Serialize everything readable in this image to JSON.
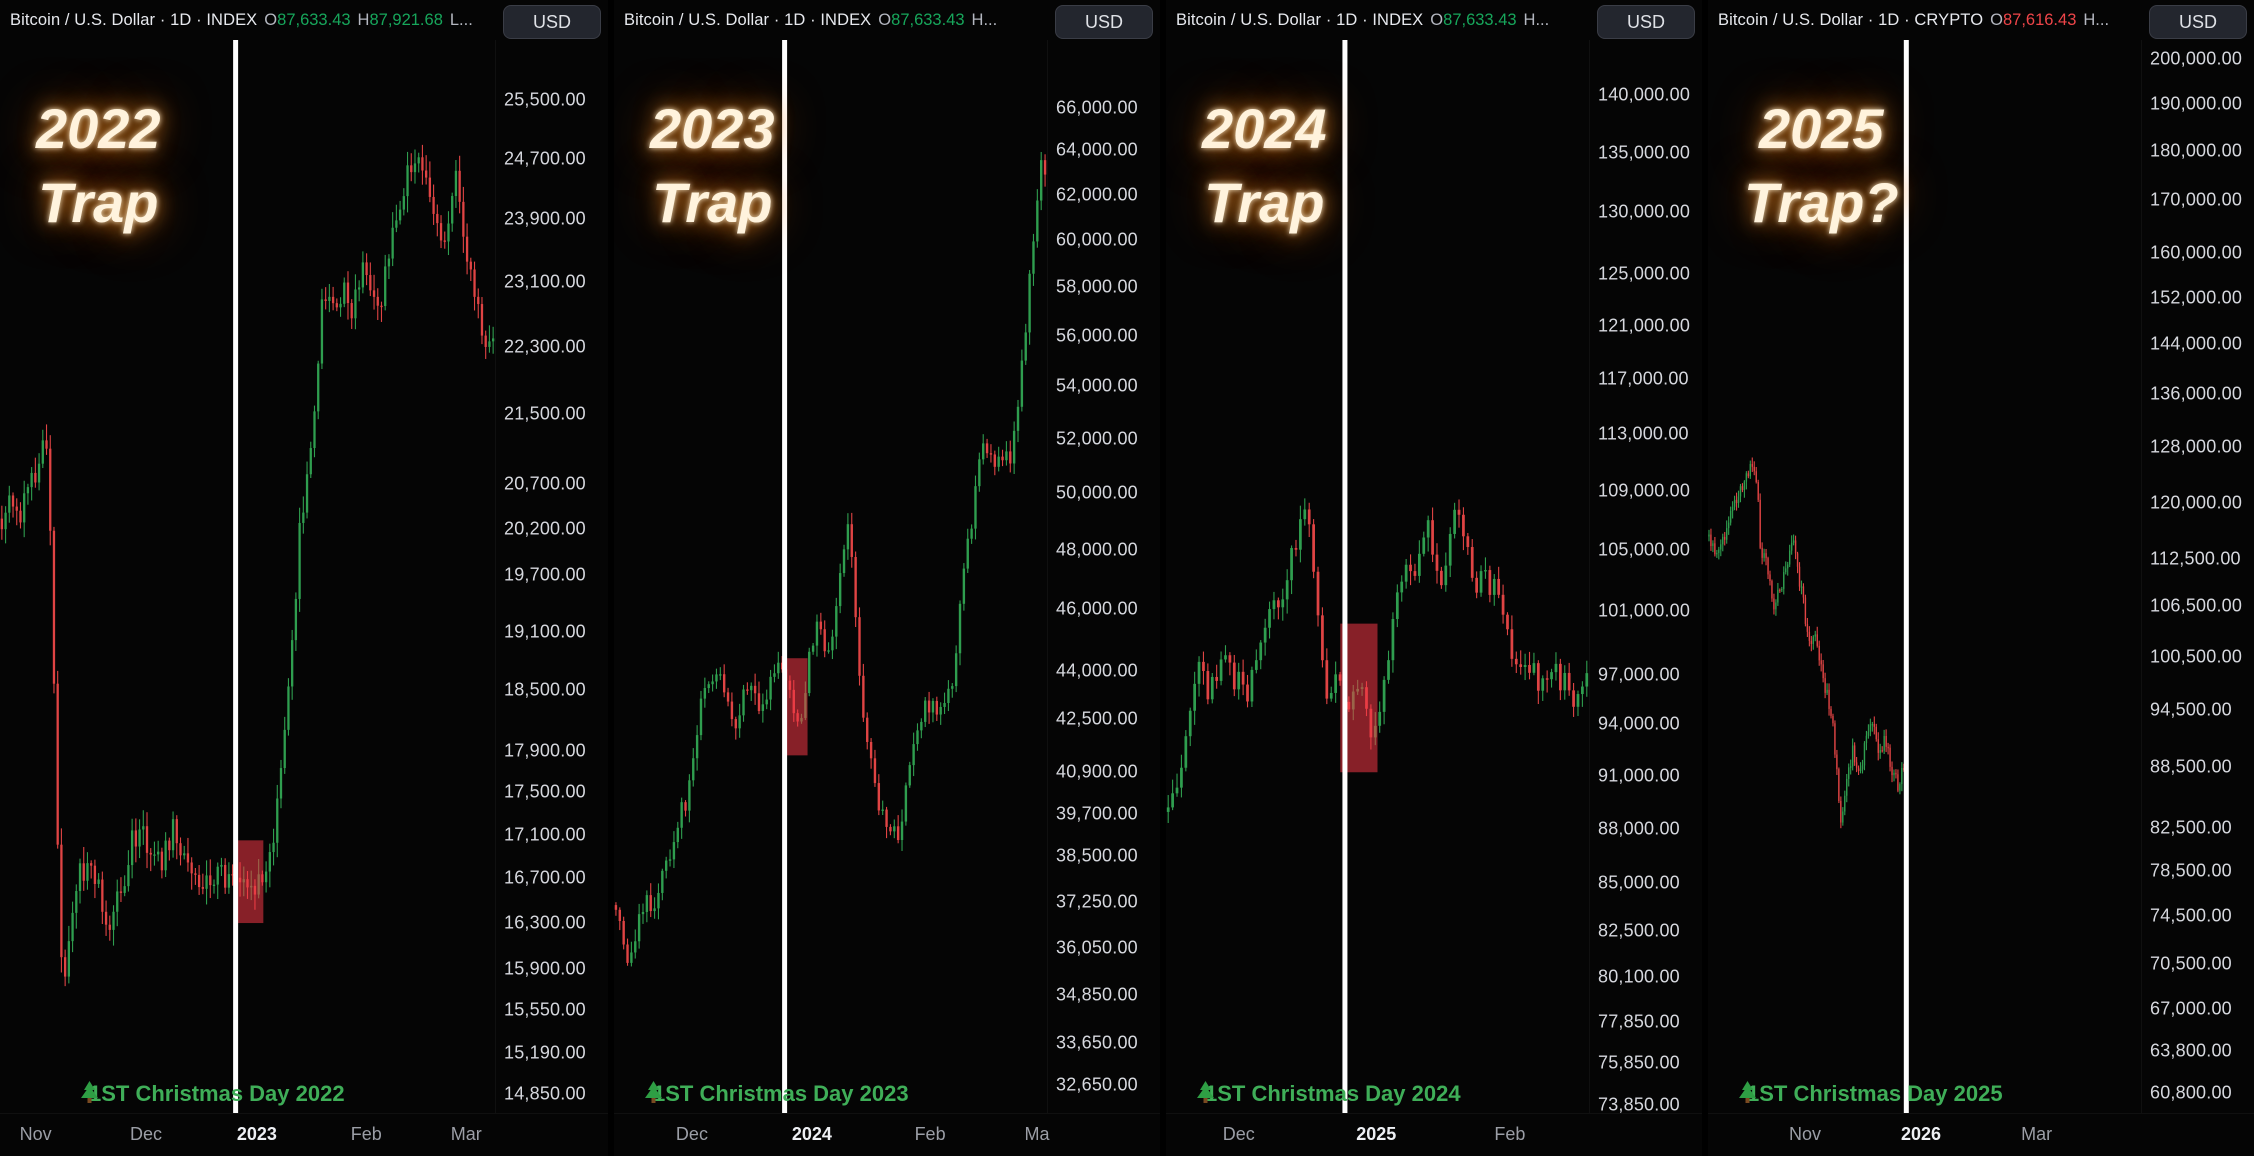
{
  "theme": {
    "background": "#000000",
    "panel_background": "#050505",
    "up_color": "#2f9e4f",
    "down_color": "#e04444",
    "header_value_up": "#17a65b",
    "header_value_down": "#ef4549",
    "event_line_color": "#ffffff",
    "event_box_color": "rgba(242,54,69,0.55)",
    "christmas_green": "#3fae58",
    "overlay_text_color": "#fff3dd"
  },
  "chart_data": [
    {
      "type": "candlestick",
      "header": {
        "symbol_line": "Bitcoin / U.S. Dollar · 1D · INDEX",
        "o_label": "O",
        "o_value": "87,633.43",
        "h_label": "H",
        "h_value": "87,921.68",
        "trunc": "L...",
        "value_class": "up"
      },
      "currency": "USD",
      "overlay": {
        "year": "2022",
        "word": "Trap"
      },
      "event_label": "1ST Christmas Day 2022",
      "x_ticks": [
        {
          "label": "Nov",
          "t": 0.072,
          "year": false
        },
        {
          "label": "Dec",
          "t": 0.295,
          "year": false
        },
        {
          "label": "2023",
          "t": 0.519,
          "year": true
        },
        {
          "label": "Feb",
          "t": 0.74,
          "year": false
        },
        {
          "label": "Mar",
          "t": 0.942,
          "year": false
        }
      ],
      "y_ticks": [
        "25,500.00",
        "24,700.00",
        "23,900.00",
        "23,100.00",
        "22,300.00",
        "21,500.00",
        "20,700.00",
        "20,200.00",
        "19,700.00",
        "19,100.00",
        "18,500.00",
        "17,900.00",
        "17,500.00",
        "17,100.00",
        "16,700.00",
        "16,300.00",
        "15,900.00",
        "15,550.00",
        "15,190.00",
        "14,850.00"
      ],
      "y_domain": [
        14700,
        26350
      ],
      "candle_slots": 133,
      "data_end_t": 1.0,
      "event_t": 0.476,
      "event_box": {
        "t0": 0.476,
        "t1": 0.532,
        "p0": 16300,
        "p1": 17050
      },
      "waypoints": [
        [
          0.0,
          20250
        ],
        [
          0.02,
          20500
        ],
        [
          0.04,
          20300
        ],
        [
          0.06,
          20600
        ],
        [
          0.08,
          21000
        ],
        [
          0.09,
          21350
        ],
        [
          0.1,
          20600
        ],
        [
          0.11,
          18300
        ],
        [
          0.12,
          16200
        ],
        [
          0.13,
          15750
        ],
        [
          0.14,
          16300
        ],
        [
          0.16,
          16700
        ],
        [
          0.18,
          16900
        ],
        [
          0.2,
          16550
        ],
        [
          0.215,
          16200
        ],
        [
          0.23,
          16500
        ],
        [
          0.25,
          16650
        ],
        [
          0.27,
          17100
        ],
        [
          0.29,
          17150
        ],
        [
          0.31,
          16900
        ],
        [
          0.33,
          16850
        ],
        [
          0.35,
          17250
        ],
        [
          0.37,
          16950
        ],
        [
          0.39,
          16800
        ],
        [
          0.41,
          16700
        ],
        [
          0.43,
          16750
        ],
        [
          0.45,
          16700
        ],
        [
          0.476,
          16650
        ],
        [
          0.5,
          16600
        ],
        [
          0.52,
          16680
        ],
        [
          0.54,
          16850
        ],
        [
          0.56,
          17300
        ],
        [
          0.575,
          18100
        ],
        [
          0.59,
          18900
        ],
        [
          0.605,
          20100
        ],
        [
          0.62,
          20900
        ],
        [
          0.635,
          21500
        ],
        [
          0.65,
          22700
        ],
        [
          0.665,
          23050
        ],
        [
          0.68,
          22800
        ],
        [
          0.695,
          23000
        ],
        [
          0.71,
          22650
        ],
        [
          0.725,
          23100
        ],
        [
          0.74,
          23300
        ],
        [
          0.755,
          22900
        ],
        [
          0.77,
          22700
        ],
        [
          0.785,
          23500
        ],
        [
          0.8,
          23750
        ],
        [
          0.815,
          24250
        ],
        [
          0.83,
          24600
        ],
        [
          0.845,
          24900
        ],
        [
          0.86,
          24550
        ],
        [
          0.875,
          24150
        ],
        [
          0.89,
          23500
        ],
        [
          0.905,
          23900
        ],
        [
          0.92,
          24400
        ],
        [
          0.935,
          23700
        ],
        [
          0.95,
          23200
        ],
        [
          0.965,
          22800
        ],
        [
          0.98,
          22400
        ],
        [
          1.0,
          22300
        ]
      ]
    },
    {
      "type": "candlestick",
      "header": {
        "symbol_line": "Bitcoin / U.S. Dollar · 1D · INDEX",
        "o_label": "O",
        "o_value": "87,633.43",
        "h_label": null,
        "h_value": null,
        "trunc": "H...",
        "value_class": "up"
      },
      "currency": "USD",
      "overlay": {
        "year": "2023",
        "word": "Trap"
      },
      "event_label": "1ST Christmas Day 2023",
      "x_ticks": [
        {
          "label": "Dec",
          "t": 0.18,
          "year": false
        },
        {
          "label": "2024",
          "t": 0.457,
          "year": true
        },
        {
          "label": "Feb",
          "t": 0.73,
          "year": false
        },
        {
          "label": "Ma",
          "t": 0.977,
          "year": false
        }
      ],
      "y_ticks": [
        "66,000.00",
        "64,000.00",
        "62,000.00",
        "60,000.00",
        "58,000.00",
        "56,000.00",
        "54,000.00",
        "52,000.00",
        "50,000.00",
        "48,000.00",
        "46,000.00",
        "44,000.00",
        "42,500.00",
        "40,900.00",
        "39,700.00",
        "38,500.00",
        "37,250.00",
        "36,050.00",
        "34,850.00",
        "33,650.00",
        "32,650.00"
      ],
      "y_domain": [
        32000,
        69300
      ],
      "candle_slots": 112,
      "data_end_t": 1.0,
      "event_t": 0.394,
      "event_box": {
        "t0": 0.39,
        "t1": 0.447,
        "p0": 41400,
        "p1": 44400
      },
      "waypoints": [
        [
          0.0,
          37100
        ],
        [
          0.02,
          36600
        ],
        [
          0.035,
          35400
        ],
        [
          0.05,
          36300
        ],
        [
          0.07,
          37200
        ],
        [
          0.09,
          37000
        ],
        [
          0.11,
          37800
        ],
        [
          0.13,
          38700
        ],
        [
          0.15,
          39500
        ],
        [
          0.17,
          40200
        ],
        [
          0.19,
          41700
        ],
        [
          0.21,
          43800
        ],
        [
          0.24,
          44100
        ],
        [
          0.26,
          43300
        ],
        [
          0.28,
          42000
        ],
        [
          0.3,
          43500
        ],
        [
          0.32,
          43900
        ],
        [
          0.34,
          42600
        ],
        [
          0.36,
          43700
        ],
        [
          0.38,
          44000
        ],
        [
          0.394,
          43600
        ],
        [
          0.41,
          42900
        ],
        [
          0.43,
          42500
        ],
        [
          0.45,
          44300
        ],
        [
          0.47,
          45600
        ],
        [
          0.5,
          44200
        ],
        [
          0.52,
          46800
        ],
        [
          0.54,
          48900
        ],
        [
          0.555,
          46400
        ],
        [
          0.57,
          42800
        ],
        [
          0.59,
          41500
        ],
        [
          0.61,
          40100
        ],
        [
          0.63,
          39600
        ],
        [
          0.653,
          39000
        ],
        [
          0.67,
          40000
        ],
        [
          0.69,
          41800
        ],
        [
          0.71,
          42600
        ],
        [
          0.73,
          43100
        ],
        [
          0.75,
          42500
        ],
        [
          0.77,
          43000
        ],
        [
          0.79,
          44500
        ],
        [
          0.805,
          47100
        ],
        [
          0.82,
          48300
        ],
        [
          0.835,
          49900
        ],
        [
          0.85,
          52000
        ],
        [
          0.865,
          51800
        ],
        [
          0.88,
          50700
        ],
        [
          0.895,
          51600
        ],
        [
          0.91,
          51000
        ],
        [
          0.925,
          52400
        ],
        [
          0.94,
          54500
        ],
        [
          0.955,
          57000
        ],
        [
          0.97,
          60500
        ],
        [
          0.98,
          62500
        ],
        [
          0.99,
          63800
        ],
        [
          1.0,
          62300
        ]
      ]
    },
    {
      "type": "candlestick",
      "header": {
        "symbol_line": "Bitcoin / U.S. Dollar · 1D · INDEX",
        "o_label": "O",
        "o_value": "87,633.43",
        "h_label": null,
        "h_value": null,
        "trunc": "H...",
        "value_class": "up"
      },
      "currency": "USD",
      "overlay": {
        "year": "2024",
        "word": "Trap"
      },
      "event_label": "1ST Christmas Day 2024",
      "x_ticks": [
        {
          "label": "Dec",
          "t": 0.172,
          "year": false
        },
        {
          "label": "2025",
          "t": 0.497,
          "year": true
        },
        {
          "label": "Feb",
          "t": 0.813,
          "year": false
        }
      ],
      "y_ticks": [
        "140,000.00",
        "135,000.00",
        "130,000.00",
        "125,000.00",
        "121,000.00",
        "117,000.00",
        "113,000.00",
        "109,000.00",
        "105,000.00",
        "101,000.00",
        "97,000.00",
        "94,000.00",
        "91,000.00",
        "88,000.00",
        "85,000.00",
        "82,500.00",
        "80,100.00",
        "77,850.00",
        "75,850.00",
        "73,850.00"
      ],
      "y_domain": [
        73500,
        145000
      ],
      "candle_slots": 96,
      "data_end_t": 1.0,
      "event_t": 0.423,
      "event_box": {
        "t0": 0.412,
        "t1": 0.5,
        "p0": 91200,
        "p1": 100200
      },
      "waypoints": [
        [
          0.0,
          88200
        ],
        [
          0.02,
          90500
        ],
        [
          0.04,
          92000
        ],
        [
          0.06,
          95800
        ],
        [
          0.08,
          97500
        ],
        [
          0.1,
          95600
        ],
        [
          0.12,
          97000
        ],
        [
          0.14,
          98800
        ],
        [
          0.16,
          96500
        ],
        [
          0.17,
          96600
        ],
        [
          0.19,
          95900
        ],
        [
          0.21,
          97200
        ],
        [
          0.23,
          99500
        ],
        [
          0.25,
          101200
        ],
        [
          0.27,
          100500
        ],
        [
          0.29,
          103600
        ],
        [
          0.31,
          106100
        ],
        [
          0.325,
          107800
        ],
        [
          0.34,
          106300
        ],
        [
          0.355,
          101500
        ],
        [
          0.37,
          97500
        ],
        [
          0.385,
          95300
        ],
        [
          0.4,
          97800
        ],
        [
          0.42,
          95200
        ],
        [
          0.435,
          94800
        ],
        [
          0.45,
          97200
        ],
        [
          0.465,
          95500
        ],
        [
          0.48,
          93800
        ],
        [
          0.5,
          94400
        ],
        [
          0.515,
          96900
        ],
        [
          0.53,
          99200
        ],
        [
          0.55,
          102300
        ],
        [
          0.57,
          104800
        ],
        [
          0.585,
          102100
        ],
        [
          0.6,
          104500
        ],
        [
          0.615,
          106900
        ],
        [
          0.63,
          105200
        ],
        [
          0.645,
          102800
        ],
        [
          0.66,
          104100
        ],
        [
          0.675,
          106100
        ],
        [
          0.69,
          108100
        ],
        [
          0.705,
          105500
        ],
        [
          0.72,
          104000
        ],
        [
          0.735,
          102500
        ],
        [
          0.75,
          104400
        ],
        [
          0.765,
          101800
        ],
        [
          0.78,
          102600
        ],
        [
          0.795,
          100600
        ],
        [
          0.81,
          99400
        ],
        [
          0.825,
          97700
        ],
        [
          0.84,
          98300
        ],
        [
          0.855,
          96200
        ],
        [
          0.87,
          97600
        ],
        [
          0.885,
          95800
        ],
        [
          0.9,
          96900
        ],
        [
          0.915,
          98100
        ],
        [
          0.93,
          96300
        ],
        [
          0.945,
          97000
        ],
        [
          0.96,
          95600
        ],
        [
          0.98,
          96800
        ],
        [
          1.0,
          97100
        ]
      ]
    },
    {
      "type": "candlestick",
      "header": {
        "symbol_line": "Bitcoin / U.S. Dollar · 1D · CRYPTO",
        "o_label": "O",
        "o_value": "87,616.43",
        "h_label": null,
        "h_value": null,
        "trunc": "H...",
        "value_class": "down"
      },
      "currency": "USD",
      "overlay": {
        "year": "2025",
        "word": "Trap?"
      },
      "event_label": "1ST Christmas Day 2025",
      "x_ticks": [
        {
          "label": "Nov",
          "t": 0.224,
          "year": false
        },
        {
          "label": "2026",
          "t": 0.492,
          "year": true
        },
        {
          "label": "Mar",
          "t": 0.759,
          "year": false
        }
      ],
      "y_ticks": [
        "200,000.00",
        "190,000.00",
        "180,000.00",
        "170,000.00",
        "160,000.00",
        "152,000.00",
        "144,000.00",
        "136,000.00",
        "128,000.00",
        "120,000.00",
        "112,500.00",
        "106,500.00",
        "100,500.00",
        "94,500.00",
        "88,500.00",
        "82,500.00",
        "78,500.00",
        "74,500.00",
        "70,500.00",
        "67,000.00",
        "63,800.00",
        "60,800.00"
      ],
      "y_domain": [
        59400,
        204500
      ],
      "candle_slots": 220,
      "data_end_t": 0.458,
      "event_t": 0.458,
      "event_box": null,
      "waypoints": [
        [
          0.0,
          115500
        ],
        [
          0.02,
          113000
        ],
        [
          0.04,
          116000
        ],
        [
          0.06,
          119500
        ],
        [
          0.08,
          122500
        ],
        [
          0.1,
          125500
        ],
        [
          0.106,
          125800
        ],
        [
          0.115,
          121500
        ],
        [
          0.123,
          111500
        ],
        [
          0.13,
          113500
        ],
        [
          0.14,
          110000
        ],
        [
          0.154,
          106500
        ],
        [
          0.165,
          108500
        ],
        [
          0.18,
          111000
        ],
        [
          0.198,
          114800
        ],
        [
          0.21,
          110000
        ],
        [
          0.22,
          107500
        ],
        [
          0.233,
          101500
        ],
        [
          0.245,
          103500
        ],
        [
          0.26,
          99500
        ],
        [
          0.275,
          96000
        ],
        [
          0.29,
          92000
        ],
        [
          0.3,
          86500
        ],
        [
          0.308,
          83000
        ],
        [
          0.32,
          86500
        ],
        [
          0.335,
          90500
        ],
        [
          0.35,
          87000
        ],
        [
          0.365,
          91500
        ],
        [
          0.38,
          93500
        ],
        [
          0.395,
          90000
        ],
        [
          0.41,
          91500
        ],
        [
          0.425,
          88000
        ],
        [
          0.44,
          86500
        ],
        [
          0.45,
          88200
        ],
        [
          0.458,
          87616
        ]
      ]
    }
  ]
}
